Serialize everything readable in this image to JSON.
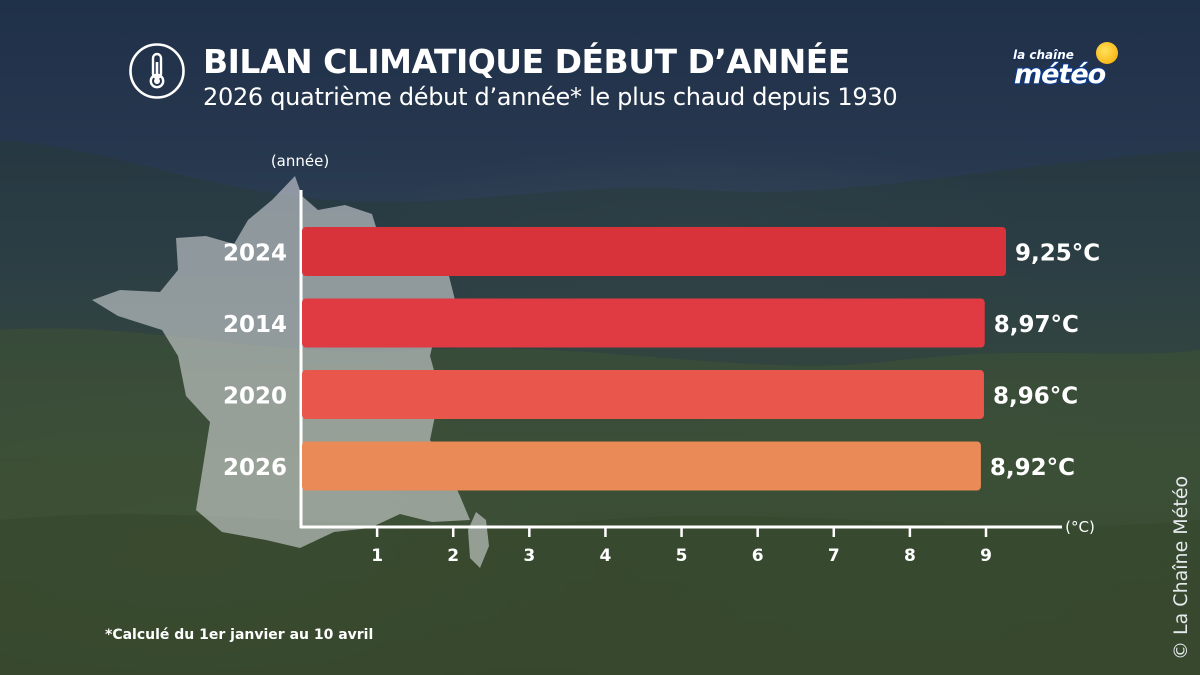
{
  "header": {
    "title": "BILAN CLIMATIQUE DÉBUT D’ANNÉE",
    "subtitle": "2026 quatrième début d’année* le plus chaud depuis 1930",
    "icon": "thermometer-icon"
  },
  "logo": {
    "line1": "la chaîne",
    "line2": "météo",
    "sun_color": "#f6b300"
  },
  "chart_data": {
    "type": "bar",
    "orientation": "horizontal",
    "categories": [
      "2024",
      "2014",
      "2020",
      "2026"
    ],
    "values": [
      9.25,
      8.97,
      8.96,
      8.92
    ],
    "value_labels": [
      "9,25°C",
      "8,97°C",
      "8,96°C",
      "8,92°C"
    ],
    "bar_colors": [
      "#d8333b",
      "#e03a42",
      "#e9564c",
      "#ea8a57"
    ],
    "xlabel": "(°C)",
    "ylabel": "(année)",
    "xlim": [
      0,
      10
    ],
    "x_ticks": [
      "1",
      "2",
      "3",
      "4",
      "5",
      "6",
      "7",
      "8",
      "9"
    ],
    "grid": false,
    "legend": "none"
  },
  "footnote": "*Calculé du 1er janvier au 10 avril",
  "copyright": "© La Chaîne Météo"
}
